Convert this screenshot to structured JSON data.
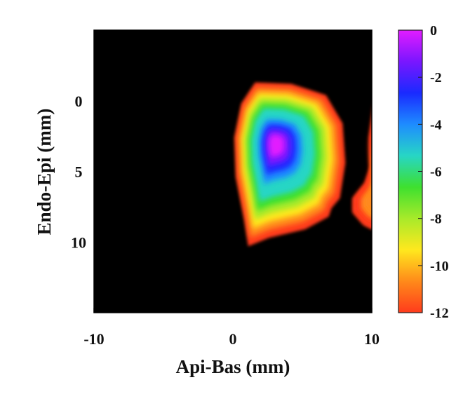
{
  "chart_data": {
    "type": "heatmap",
    "xlabel": "Api-Bas (mm)",
    "ylabel": "Endo-Epi (mm)",
    "xlim": [
      -10,
      10
    ],
    "ylim": [
      15,
      -5
    ],
    "x_ticks": [
      "-10",
      "0",
      "10"
    ],
    "y_ticks": [
      "0",
      "5",
      "10"
    ],
    "x_tick_values": [
      -10,
      0,
      10
    ],
    "y_tick_values": [
      0,
      5,
      10
    ],
    "colorbar": {
      "range": [
        -12,
        0
      ],
      "ticks": [
        "0",
        "-2",
        "-4",
        "-6",
        "-8",
        "-10",
        "-12"
      ],
      "tick_values": [
        0,
        -2,
        -4,
        -6,
        -8,
        -10,
        -12
      ],
      "colormap": [
        "#ff3b1c",
        "#ff8a1a",
        "#ffe81e",
        "#a8ea2a",
        "#3ee02f",
        "#27d6c5",
        "#1e8cff",
        "#1a2aff",
        "#7a16ff",
        "#e21cff"
      ]
    },
    "background_color": "#000000",
    "peak": {
      "x": 3.0,
      "y": 3.0,
      "value": 0
    },
    "regions": [
      {
        "name": "main-blob",
        "center": [
          3.0,
          3.0
        ],
        "min_value": 0,
        "edge_value": -12,
        "outline": [
          [
            1.6,
            -1.3
          ],
          [
            4.2,
            -1.2
          ],
          [
            6.7,
            -0.4
          ],
          [
            7.9,
            1.6
          ],
          [
            8.1,
            4.4
          ],
          [
            7.7,
            6.9
          ],
          [
            7.1,
            7.6
          ],
          [
            6.9,
            8.2
          ],
          [
            5.2,
            9.1
          ],
          [
            2.6,
            9.7
          ],
          [
            1.1,
            10.3
          ],
          [
            0.8,
            8.4
          ],
          [
            0.2,
            5.4
          ],
          [
            0.1,
            2.6
          ],
          [
            0.6,
            0.2
          ]
        ]
      },
      {
        "name": "right-edge-blob",
        "center": [
          10.5,
          7.0
        ],
        "min_value": -10,
        "edge_value": -12,
        "outline": [
          [
            10.2,
            -0.2
          ],
          [
            9.8,
            2.6
          ],
          [
            9.9,
            4.6
          ],
          [
            9.5,
            5.8
          ],
          [
            8.6,
            6.9
          ],
          [
            8.6,
            7.9
          ],
          [
            9.4,
            8.8
          ],
          [
            10.0,
            9.1
          ],
          [
            10.5,
            9.0
          ],
          [
            10.5,
            -0.2
          ]
        ]
      }
    ]
  }
}
